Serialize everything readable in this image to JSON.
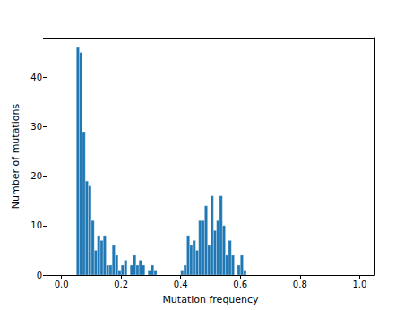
{
  "chart_data": {
    "type": "histogram",
    "x_label": "Mutation frequency",
    "y_label": "Number of mutations",
    "bins": [
      0.05,
      0.06,
      0.07,
      0.08,
      0.09,
      0.1,
      0.11,
      0.12,
      0.13,
      0.14,
      0.15,
      0.16,
      0.17,
      0.18,
      0.19,
      0.2,
      0.21,
      0.22,
      0.23,
      0.24,
      0.25,
      0.26,
      0.27,
      0.28,
      0.29,
      0.3,
      0.31,
      0.32,
      0.33,
      0.34,
      0.35,
      0.36,
      0.37,
      0.38,
      0.39,
      0.4,
      0.41,
      0.42,
      0.43,
      0.44,
      0.45,
      0.46,
      0.47,
      0.48,
      0.49,
      0.5,
      0.51,
      0.52,
      0.53,
      0.54,
      0.55,
      0.56,
      0.57,
      0.58,
      0.59,
      0.6,
      0.61,
      0.62
    ],
    "values": [
      46,
      45,
      29,
      19,
      18,
      11,
      5,
      8,
      7,
      8,
      2,
      2,
      6,
      4,
      1,
      2,
      3,
      0,
      2,
      4,
      2,
      3,
      2,
      0,
      1,
      2,
      1,
      0,
      0,
      0,
      0,
      0,
      0,
      0,
      0,
      1,
      2,
      8,
      6,
      7,
      5,
      11,
      11,
      14,
      6,
      16,
      9,
      11,
      16,
      10,
      4,
      7,
      4,
      0,
      2,
      4,
      1
    ],
    "color": "#1f77b4",
    "xlim": [
      -0.05,
      1.05
    ],
    "xticks": [
      {
        "value": 0,
        "label": "0.0"
      },
      {
        "value": 0.2,
        "label": "0.2"
      },
      {
        "value": 0.4,
        "label": "0.4"
      },
      {
        "value": 0.6,
        "label": "0.6"
      },
      {
        "value": 0.8,
        "label": "0.8"
      },
      {
        "value": 1.0,
        "label": "1.0"
      }
    ],
    "ylim": [
      0,
      48
    ],
    "yticks": [
      0,
      10,
      20,
      30,
      40
    ],
    "grid": false
  }
}
